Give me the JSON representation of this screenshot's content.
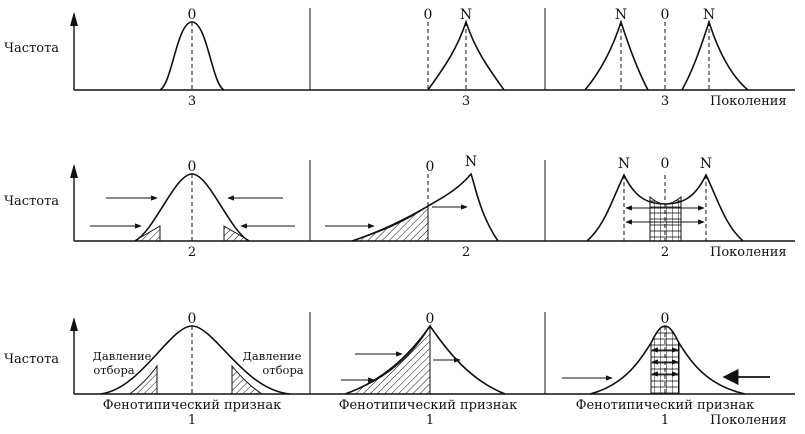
{
  "labels": {
    "frequency": "Частота",
    "generations": "Поколения",
    "phenotypic_trait": "Фенотипический признак",
    "selection_pressure_line1": "Давление",
    "selection_pressure_line2": "отбора"
  },
  "marks": {
    "zero": "0",
    "n": "N"
  },
  "generation_numbers": {
    "row1": "3",
    "row2": "2",
    "row3": "1"
  }
}
